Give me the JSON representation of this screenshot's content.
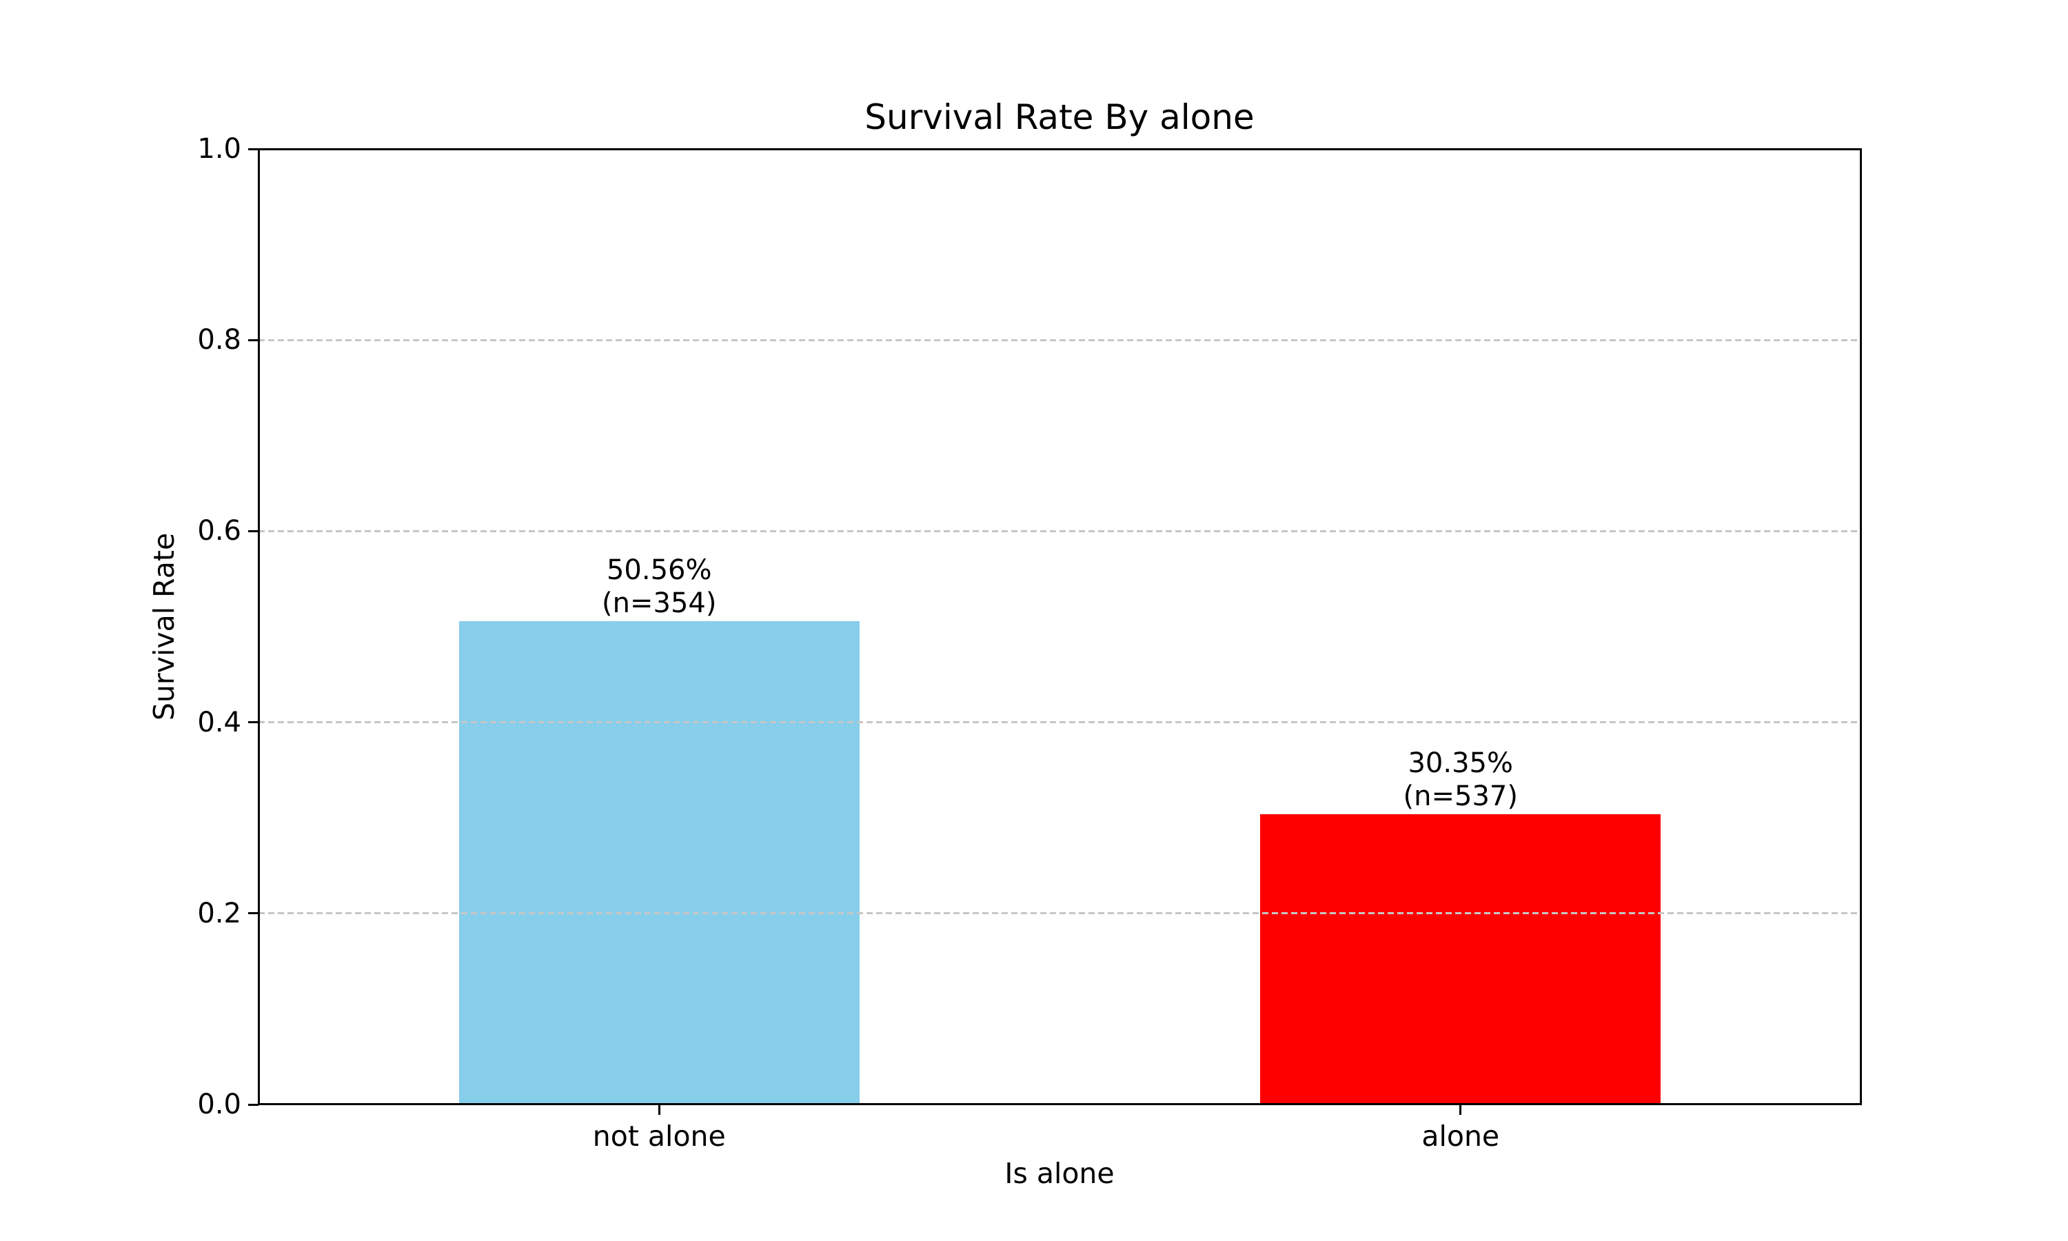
{
  "figure": {
    "background": "#ffffff",
    "text_color": "#000000",
    "axis_color": "#000000"
  },
  "chart_data": {
    "type": "bar",
    "title": "Survival Rate By alone",
    "xlabel": "Is alone",
    "ylabel": "Survival Rate",
    "categories": [
      "not alone",
      "alone"
    ],
    "values": [
      0.5056,
      0.3035
    ],
    "counts": [
      354,
      537
    ],
    "bar_labels": [
      [
        "50.56%",
        "(n=354)"
      ],
      [
        "30.35%",
        "(n=537)"
      ]
    ],
    "bar_colors": [
      "#87CEEB",
      "#FF0000"
    ],
    "ylim": [
      0.0,
      1.0
    ],
    "yticks": [
      0.0,
      0.2,
      0.4,
      0.6,
      0.8,
      1.0
    ],
    "ytick_labels": [
      "0.0",
      "0.2",
      "0.4",
      "0.6",
      "0.8",
      "1.0"
    ],
    "grid": {
      "axis": "y",
      "style": "dashed",
      "color": "#c6c6c6",
      "above_bars": true
    },
    "legend": null
  }
}
